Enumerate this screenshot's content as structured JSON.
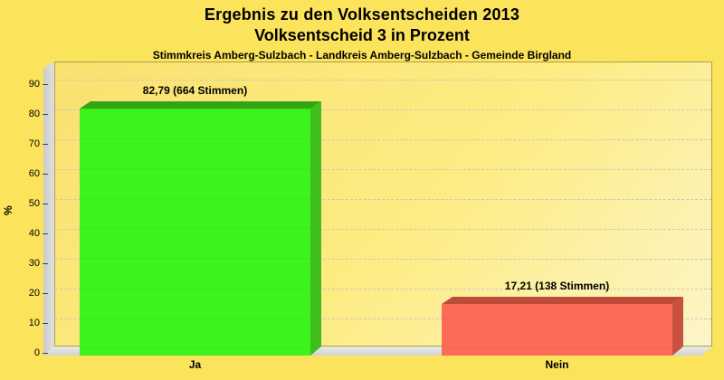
{
  "title": {
    "line1": "Ergebnis zu den Volksentscheiden 2013",
    "line2": "Volksentscheid 3 in Prozent",
    "subtitle": "Stimmkreis Amberg-Sulzbach - Landkreis Amberg-Sulzbach - Gemeinde Birgland"
  },
  "chart_data": {
    "type": "bar",
    "categories": [
      "Ja",
      "Nein"
    ],
    "values": [
      82.79,
      17.21
    ],
    "votes": [
      664,
      138
    ],
    "bar_labels": [
      "82,79 (664 Stimmen)",
      "17,21 (138 Stimmen)"
    ],
    "ylabel": "%",
    "ylim": [
      0,
      95
    ],
    "yticks": [
      0,
      10,
      20,
      30,
      40,
      50,
      60,
      70,
      80,
      90
    ],
    "ytick_labels": [
      "0",
      "10",
      "20",
      "30",
      "40",
      "50",
      "60",
      "70",
      "80",
      "90"
    ],
    "grid": "horizontal-dashed",
    "legend": "none",
    "style": "pseudo-3d-bars",
    "colors": {
      "page_background": "#FCE35C",
      "plot_gradient_start": "#FAE170",
      "plot_gradient_end": "#FCF5C8",
      "plot_border": "#ABA050",
      "gridline": "#C9C9BB",
      "wall_gray": "#D5D5D5",
      "bar_front": [
        "#3CF41C",
        "#FC6B55"
      ],
      "bar_side": [
        "#3FBE1C",
        "#C8523F"
      ],
      "bar_top": [
        "#33A412",
        "#BC4C38"
      ],
      "text": "#000000"
    }
  }
}
